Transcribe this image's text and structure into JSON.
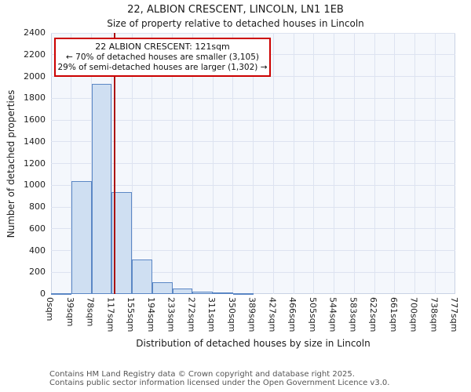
{
  "title": "22, ALBION CRESCENT, LINCOLN, LN1 1EB",
  "subtitle": "Size of property relative to detached houses in Lincoln",
  "annotation": {
    "line1": "22 ALBION CRESCENT: 121sqm",
    "line2": "← 70% of detached houses are smaller (3,105)",
    "line3": "29% of semi-detached houses are larger (1,302) →"
  },
  "footer": {
    "line1": "Contains HM Land Registry data © Crown copyright and database right 2025.",
    "line2": "Contains public sector information licensed under the Open Government Licence v3.0."
  },
  "chart_data": {
    "type": "bar",
    "title": "22, ALBION CRESCENT, LINCOLN, LN1 1EB — Size of property relative to detached houses in Lincoln",
    "xlabel": "Distribution of detached houses by size in Lincoln",
    "ylabel": "Number of detached properties",
    "categories": [
      "0sqm",
      "39sqm",
      "78sqm",
      "117sqm",
      "155sqm",
      "194sqm",
      "233sqm",
      "272sqm",
      "311sqm",
      "350sqm",
      "389sqm",
      "427sqm",
      "466sqm",
      "505sqm",
      "544sqm",
      "583sqm",
      "622sqm",
      "661sqm",
      "700sqm",
      "738sqm",
      "777sqm"
    ],
    "values": [
      10,
      1040,
      1930,
      940,
      320,
      110,
      50,
      25,
      15,
      10,
      0,
      0,
      0,
      0,
      0,
      0,
      0,
      0,
      0,
      0
    ],
    "ylim": [
      0,
      2400
    ],
    "ytick_step": 200,
    "marker_value_sqm": 121,
    "x_max_sqm": 777,
    "grid": "on",
    "legend": "none",
    "colors": {
      "bar_fill": "#cfdff2",
      "bar_border": "#5b87c5",
      "marker_line": "#aa1111",
      "annotation_border": "#cc0000",
      "grid_line": "#dde3f0",
      "plot_background": "#f4f7fc"
    }
  }
}
